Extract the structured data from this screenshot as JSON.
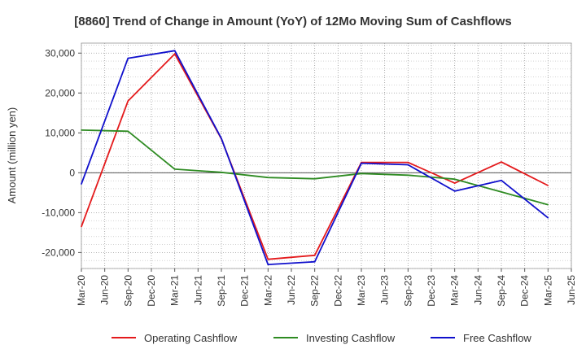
{
  "chart_data": {
    "type": "line",
    "title": "[8860]  Trend of Change in Amount (YoY) of 12Mo Moving Sum of Cashflows",
    "xlabel": "",
    "ylabel": "Amount (million yen)",
    "ylim": [
      -24000,
      32500
    ],
    "yticks": [
      -20000,
      -10000,
      0,
      10000,
      20000,
      30000
    ],
    "ytick_labels": [
      "-20,000",
      "-10,000",
      "0",
      "10,000",
      "20,000",
      "30,000"
    ],
    "categories": [
      "Mar-20",
      "Jun-20",
      "Sep-20",
      "Dec-20",
      "Mar-21",
      "Jun-21",
      "Sep-21",
      "Dec-21",
      "Mar-22",
      "Jun-22",
      "Sep-22",
      "Dec-22",
      "Mar-23",
      "Jun-23",
      "Sep-23",
      "Dec-23",
      "Mar-24",
      "Jun-24",
      "Sep-24",
      "Dec-24",
      "Mar-25",
      "Jun-25"
    ],
    "grid": true,
    "legend_position": "bottom",
    "series": [
      {
        "name": "Operating Cashflow",
        "color": "#e41a1c",
        "values": [
          -13500,
          null,
          18000,
          null,
          29800,
          null,
          8500,
          null,
          -21700,
          null,
          -20700,
          null,
          2600,
          null,
          2600,
          null,
          -2600,
          null,
          2700,
          null,
          -3200,
          null
        ]
      },
      {
        "name": "Investing Cashflow",
        "color": "#2e8b22",
        "values": [
          10700,
          null,
          10400,
          null,
          900,
          null,
          100,
          null,
          -1200,
          null,
          -1500,
          null,
          -200,
          null,
          -600,
          null,
          -1600,
          null,
          -4800,
          null,
          -8000,
          null
        ]
      },
      {
        "name": "Free Cashflow",
        "color": "#1010cc",
        "values": [
          -2800,
          null,
          28700,
          null,
          30600,
          null,
          8600,
          null,
          -23000,
          null,
          -22300,
          null,
          2400,
          null,
          2000,
          null,
          -4600,
          null,
          -1900,
          null,
          -11300,
          null
        ]
      }
    ]
  }
}
